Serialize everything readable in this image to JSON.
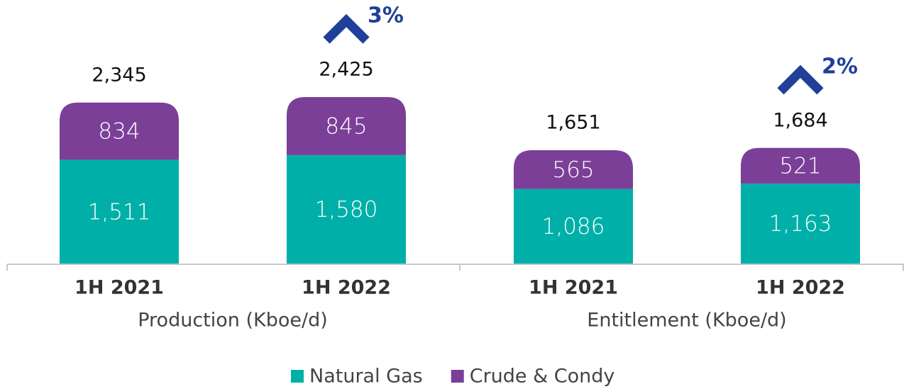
{
  "chart_data": {
    "type": "stacked_bar",
    "categories": [
      "1H 2021",
      "1H 2022",
      "1H 2021",
      "1H 2022"
    ],
    "groups": [
      "Production (Kboe/d)",
      "Entitlement (Kboe/d)"
    ],
    "series": [
      {
        "name": "Natural Gas",
        "color": "#00b0a8",
        "values": [
          1511,
          1580,
          1086,
          1163
        ],
        "value_labels": [
          "1,511",
          "1,580",
          "1,086",
          "1,163"
        ]
      },
      {
        "name": "Crude & Condy",
        "color": "#7b3f98",
        "values": [
          834,
          845,
          565,
          521
        ]
      }
    ],
    "totals": {
      "values": [
        2345,
        2425,
        1651,
        1684
      ],
      "value_labels": [
        "2,345",
        "2,425",
        "1,651",
        "1,684"
      ]
    },
    "annotations": [
      null,
      "3%",
      null,
      "2%"
    ],
    "annotation_color": "#1f3f99",
    "legend": "bottom"
  }
}
